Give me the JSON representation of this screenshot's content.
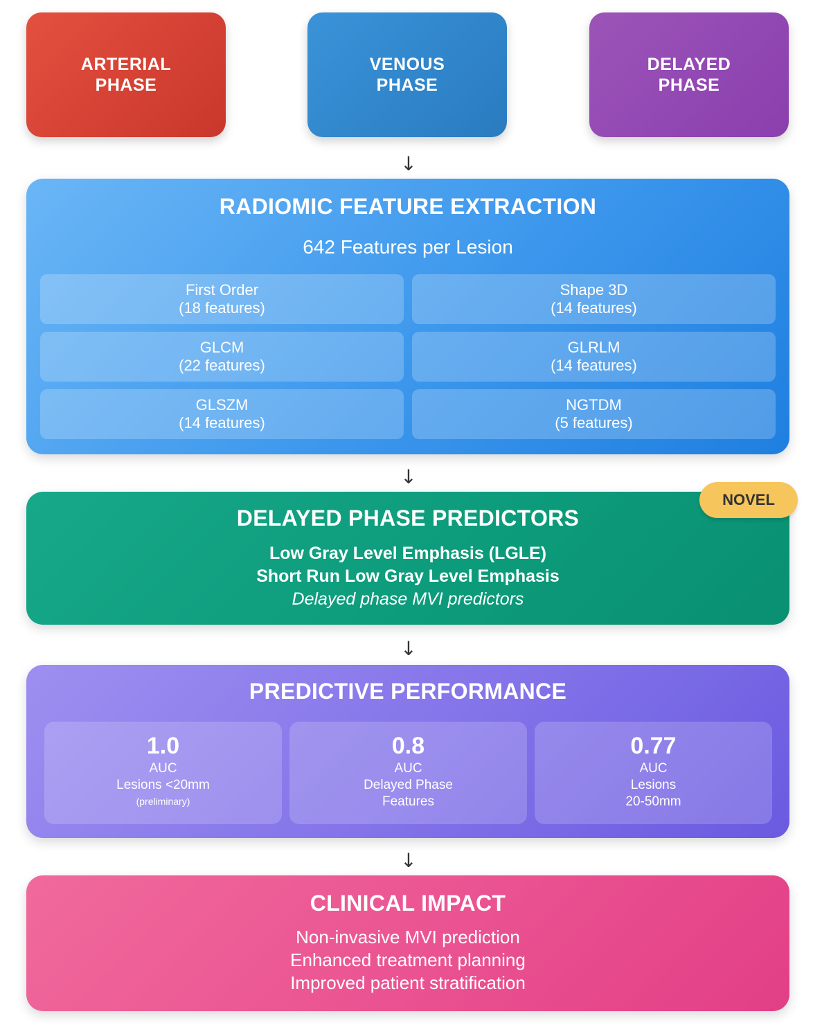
{
  "phases": {
    "arterial": [
      "ARTERIAL",
      "PHASE"
    ],
    "venous": [
      "VENOUS",
      "PHASE"
    ],
    "delayed": [
      "DELAYED",
      "PHASE"
    ]
  },
  "arrow": "↓",
  "radiomic": {
    "title": "RADIOMIC FEATURE EXTRACTION",
    "subtitle": "642 Features per Lesion",
    "features": [
      {
        "name": "First Order",
        "count": "(18 features)"
      },
      {
        "name": "Shape 3D",
        "count": "(14 features)"
      },
      {
        "name": "GLCM",
        "count": "(22 features)"
      },
      {
        "name": "GLRLM",
        "count": "(14 features)"
      },
      {
        "name": "GLSZM",
        "count": "(14 features)"
      },
      {
        "name": "NGTDM",
        "count": "(5 features)"
      }
    ]
  },
  "predictors": {
    "badge": "NOVEL",
    "title": "DELAYED PHASE PREDICTORS",
    "line1": "Low Gray Level Emphasis (LGLE)",
    "line2": "Short Run Low Gray Level Emphasis",
    "line3": "Delayed phase MVI predictors"
  },
  "performance": {
    "title": "PREDICTIVE PERFORMANCE",
    "metrics": [
      {
        "value": "1.0",
        "lines": [
          "AUC",
          "Lesions <20mm"
        ],
        "note": "(preliminary)"
      },
      {
        "value": "0.8",
        "lines": [
          "AUC",
          "Delayed Phase",
          "Features"
        ],
        "note": ""
      },
      {
        "value": "0.77",
        "lines": [
          "AUC",
          "Lesions",
          "20-50mm"
        ],
        "note": ""
      }
    ]
  },
  "impact": {
    "title": "CLINICAL IMPACT",
    "lines": [
      "Non-invasive MVI prediction",
      "Enhanced treatment planning",
      "Improved patient stratification"
    ]
  }
}
